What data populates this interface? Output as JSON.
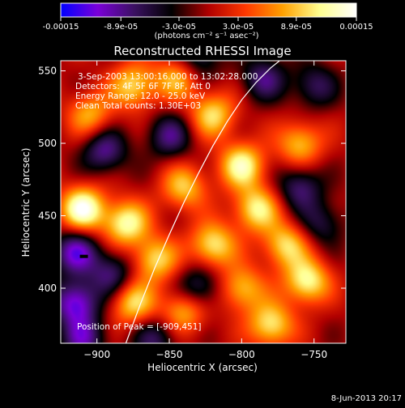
{
  "colorbar": {
    "tick_labels": [
      "-0.00015",
      "-8.9e-05",
      "-3.0e-05",
      "3.0e-05",
      "8.9e-05",
      "0.00015"
    ],
    "tick_values": [
      -0.00015,
      -8.9e-05,
      -3e-05,
      3e-05,
      8.9e-05,
      0.00015
    ],
    "range": [
      -0.00015,
      0.00015
    ],
    "unit_label": "(photons cm⁻² s⁻¹ asec⁻²)",
    "stops": [
      "#0000ff",
      "#7a00d8",
      "#3a1160",
      "#000000",
      "#b00000",
      "#ff3800",
      "#ffa000",
      "#ffff90",
      "#ffffff"
    ]
  },
  "chart_data": {
    "type": "heatmap",
    "title": "Reconstructed RHESSI Image",
    "xlabel": "Heliocentric X (arcsec)",
    "ylabel": "Heliocentric Y (arcsec)",
    "xlim": [
      -925,
      -728
    ],
    "ylim": [
      362,
      557
    ],
    "x_ticks": [
      -900,
      -850,
      -800,
      -750
    ],
    "x_tick_labels": [
      "−900",
      "−850",
      "−800",
      "−750"
    ],
    "y_ticks": [
      400,
      450,
      500,
      550
    ],
    "y_tick_labels": [
      "400",
      "450",
      "500",
      "550"
    ],
    "annotations": {
      "time": "3-Sep-2003 13:00:16.000 to 13:02:28.000",
      "detectors": "Detectors: 4F 5F 6F 7F 8F, Att 0",
      "energy": "Energy Range: 12.0 - 25.0 keV",
      "clean": "Clean    Total counts: 1.30E+03",
      "peak": "Position of Peak = [-909,451]"
    },
    "peak": [
      -909,
      451
    ],
    "limb_curve": {
      "x": [
        -880,
        -870,
        -860,
        -850,
        -840,
        -830,
        -820,
        -810,
        -800,
        -790,
        -780,
        -770
      ],
      "y": [
        362,
        389,
        414,
        437,
        459,
        479,
        498,
        515,
        530,
        542,
        552,
        560
      ]
    },
    "blobs": [
      {
        "x": -910,
        "y": 455,
        "v": 0.000145
      },
      {
        "x": -880,
        "y": 445,
        "v": 0.00012
      },
      {
        "x": -905,
        "y": 520,
        "v": 8e-05
      },
      {
        "x": -875,
        "y": 540,
        "v": 0.0001
      },
      {
        "x": -845,
        "y": 545,
        "v": 8e-05
      },
      {
        "x": -820,
        "y": 520,
        "v": 0.0001
      },
      {
        "x": -800,
        "y": 485,
        "v": 0.00012
      },
      {
        "x": -790,
        "y": 455,
        "v": 0.00011
      },
      {
        "x": -760,
        "y": 500,
        "v": 9e-05
      },
      {
        "x": -840,
        "y": 470,
        "v": 9e-05
      },
      {
        "x": -860,
        "y": 420,
        "v": 0.0001
      },
      {
        "x": -820,
        "y": 430,
        "v": 0.00011
      },
      {
        "x": -770,
        "y": 430,
        "v": 0.0001
      },
      {
        "x": -755,
        "y": 405,
        "v": 0.00012
      },
      {
        "x": -800,
        "y": 400,
        "v": 9e-05
      },
      {
        "x": -875,
        "y": 390,
        "v": 0.0001
      },
      {
        "x": -840,
        "y": 385,
        "v": 9e-05
      },
      {
        "x": -780,
        "y": 375,
        "v": 0.00011
      },
      {
        "x": -895,
        "y": 495,
        "v": -9e-05
      },
      {
        "x": -915,
        "y": 425,
        "v": -0.00011
      },
      {
        "x": -915,
        "y": 390,
        "v": -0.00012
      },
      {
        "x": -890,
        "y": 410,
        "v": -8e-05
      },
      {
        "x": -850,
        "y": 505,
        "v": -8e-05
      },
      {
        "x": -830,
        "y": 560,
        "v": -7e-05
      },
      {
        "x": -785,
        "y": 545,
        "v": -8e-05
      },
      {
        "x": -760,
        "y": 470,
        "v": -8e-05
      },
      {
        "x": -750,
        "y": 540,
        "v": -7e-05
      },
      {
        "x": -830,
        "y": 400,
        "v": -8e-05
      },
      {
        "x": -860,
        "y": 365,
        "v": -7e-05
      },
      {
        "x": -910,
        "y": 365,
        "v": -9e-05
      },
      {
        "x": -745,
        "y": 445,
        "v": -6e-05
      }
    ]
  },
  "footer": {
    "timestamp": "8-Jun-2013 20:17"
  }
}
